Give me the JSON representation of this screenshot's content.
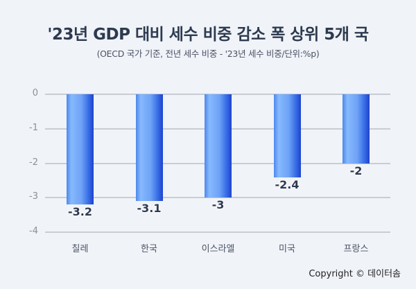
{
  "header": {
    "title": "'23년 GDP 대비 세수 비중 감소 폭 상위 5개 국",
    "subtitle": "(OECD 국가 기준, 전년 세수 비중 - '23년 세수 비중/단위:%p)"
  },
  "footer": {
    "copyright": "Copyright © 데이터솜"
  },
  "colors": {
    "background": "#f0f3f8",
    "bar_light": "#86b9fc",
    "bar_dark": "#1d43d0",
    "gridline": "#c9ccd2",
    "title": "#2d3a4f"
  },
  "chart_data": {
    "type": "bar",
    "title": "'23년 GDP 대비 세수 비중 감소 폭 상위 5개 국",
    "subtitle": "(OECD 국가 기준, 전년 세수 비중 - '23년 세수 비중/단위:%p)",
    "categories": [
      "칠레",
      "한국",
      "이스라엘",
      "미국",
      "프랑스"
    ],
    "values": [
      -3.2,
      -3.1,
      -3,
      -2.4,
      -2
    ],
    "value_labels": [
      "-3.2",
      "-3.1",
      "-3",
      "-2.4",
      "-2"
    ],
    "xlabel": "",
    "ylabel": "",
    "ylim": [
      -4,
      0
    ],
    "yticks": [
      "0",
      "-1",
      "-2",
      "-3",
      "-4"
    ],
    "grid": true,
    "legend": null
  }
}
